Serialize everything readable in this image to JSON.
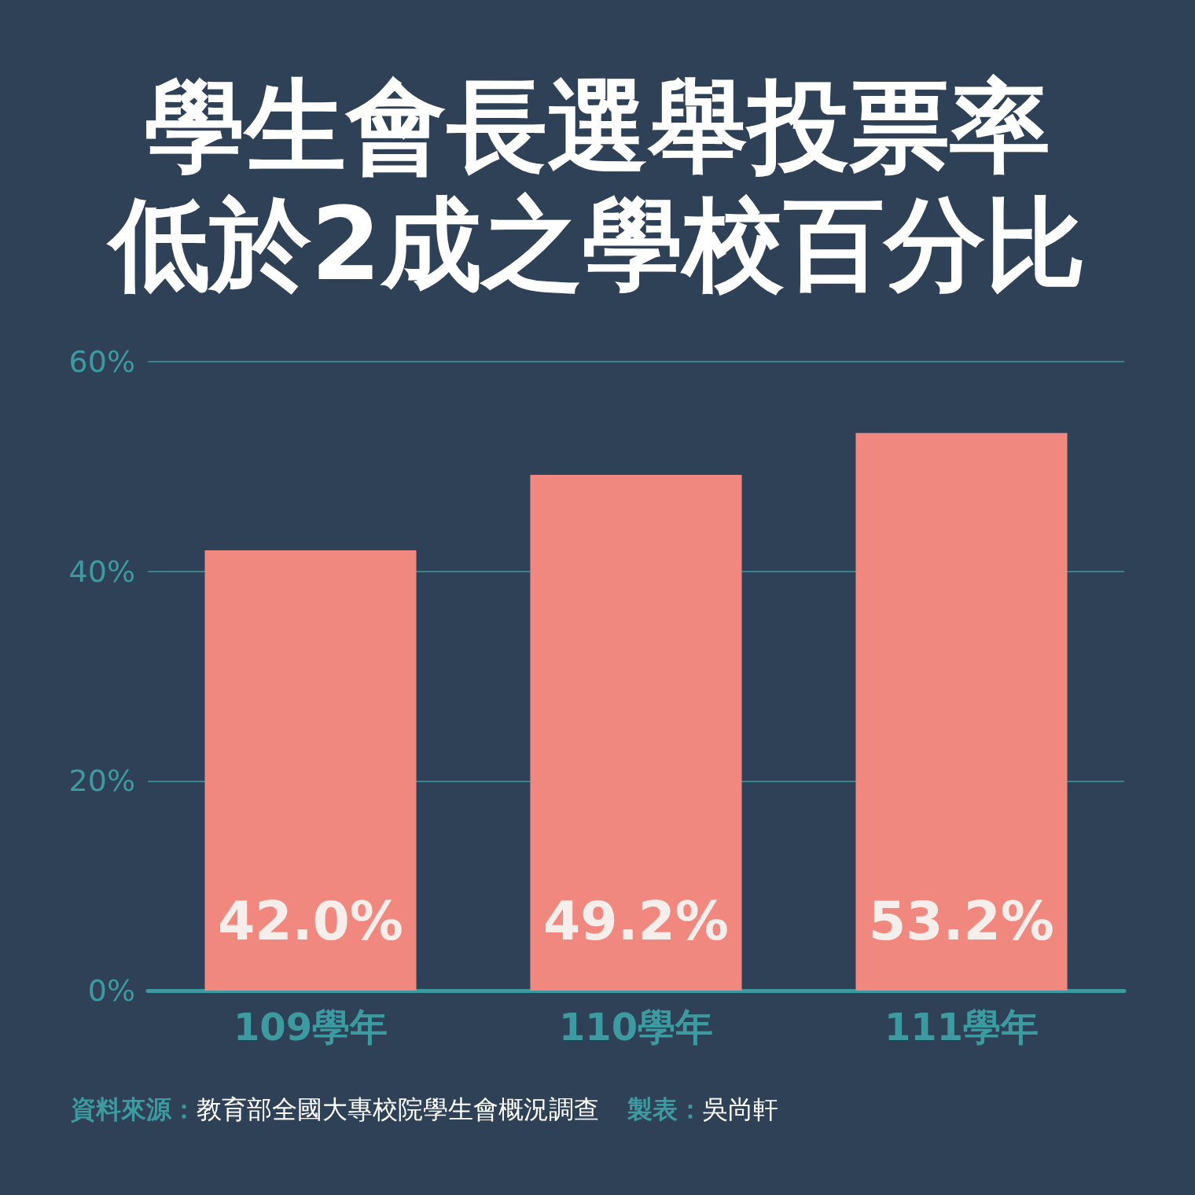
{
  "chart_data": {
    "type": "bar",
    "title": "學生會長選舉投票率低於2成之學校百分比",
    "categories": [
      "109學年",
      "110學年",
      "111學年"
    ],
    "values": [
      42.0,
      49.2,
      53.2
    ],
    "color": "#f08880",
    "value_labels": [
      "42.0%",
      "49.2%",
      "53.2%"
    ],
    "ylim": [
      0,
      60
    ],
    "yticks": [
      {
        "value": 0,
        "label": "0%"
      },
      {
        "value": 20,
        "label": "20%"
      },
      {
        "value": 40,
        "label": "40%"
      },
      {
        "value": 60,
        "label": "60%"
      }
    ],
    "grid": "y",
    "annotations": [
      "資料來源：教育部全國大專校院學生會概況調查",
      "製表：吳尚軒"
    ]
  }
}
